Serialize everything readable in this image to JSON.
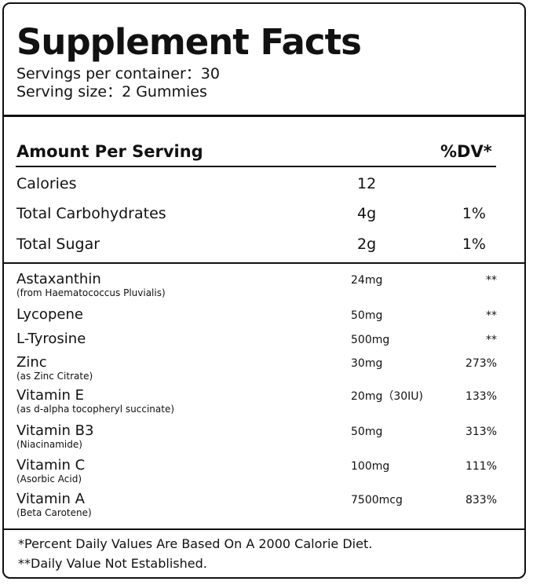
{
  "header": {
    "title": "Supplement Facts",
    "servings_per_container": "Servings per container：30",
    "serving_size": "Serving size：2 Gummies"
  },
  "main_table": {
    "heading": "Amount Per Serving",
    "dv_heading": "%DV*",
    "rows": [
      {
        "name": "Calories",
        "amount": "12"
      },
      {
        "name": "Total Carbohydrates",
        "amount": "4g",
        "dv": "1%"
      },
      {
        "name": "Total Sugar",
        "amount": "2g",
        "dv": "1%"
      }
    ]
  },
  "ingredients": [
    {
      "name": "Astaxanthin",
      "note": "(from Haematococcus Pluvialis)",
      "amount": "24mg",
      "dv": "**"
    },
    {
      "name": "Lycopene",
      "amount": "50mg",
      "dv": "**"
    },
    {
      "name": "L-Tyrosine",
      "amount": "500mg",
      "dv": "**"
    },
    {
      "name": "Zinc",
      "note": "(as Zinc Citrate)",
      "amount": "30mg",
      "dv": "273%"
    },
    {
      "name": "Vitamin E",
      "note": "(as d-alpha tocopheryl succinate)",
      "amount": "20mg（30IU)",
      "dv": "133%"
    },
    {
      "name": "Vitamin B3",
      "note": "(Niacinamide)",
      "amount": "50mg",
      "dv": "313%"
    },
    {
      "name": "Vitamin C",
      "note": "(Asorbic Acid)",
      "amount": "100mg",
      "dv": "111%"
    },
    {
      "name": "Vitamin A",
      "note": "(Beta Carotene)",
      "amount": "7500mcg",
      "dv": "833%"
    }
  ],
  "footnotes": [
    "*Percent Daily Values Are Based On A 2000 Calorie Diet.",
    "**Daily Value Not Established."
  ]
}
